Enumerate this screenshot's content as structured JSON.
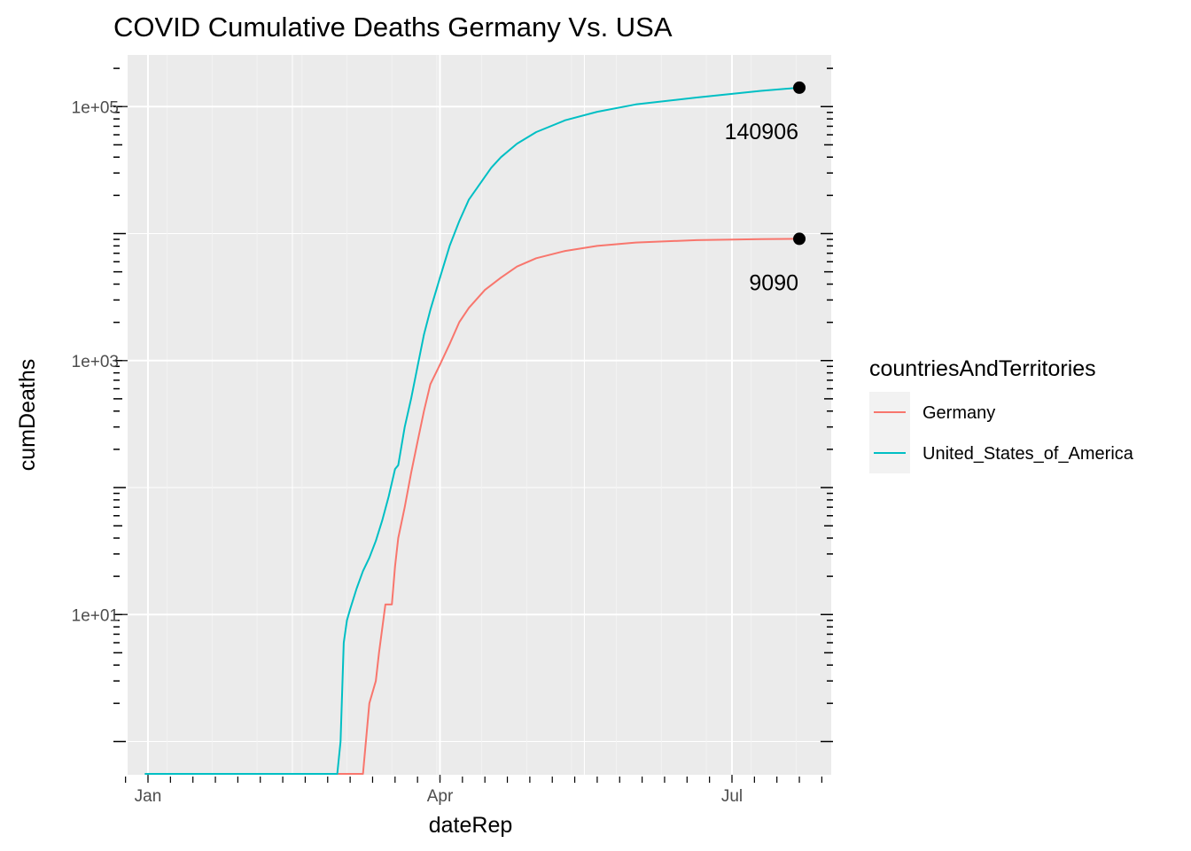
{
  "chart_data": {
    "type": "line",
    "title": "COVID Cumulative Deaths Germany Vs. USA",
    "xlabel": "dateRep",
    "ylabel": "cumDeaths",
    "y_scale": "log10",
    "grid": true,
    "legend": {
      "title": "countriesAndTerritories",
      "placement": "right"
    },
    "x_tick_labels": [
      {
        "date": "2020-01-01",
        "label": "Jan"
      },
      {
        "date": "2020-04-01",
        "label": "Apr"
      },
      {
        "date": "2020-07-01",
        "label": "Jul"
      }
    ],
    "y_tick_labels": [
      {
        "value": 10,
        "label": "1e+01"
      },
      {
        "value": 1000,
        "label": "1e+03"
      },
      {
        "value": 100000,
        "label": "1e+05"
      }
    ],
    "series": [
      {
        "name": "Germany",
        "color": "#F8766D",
        "points": [
          [
            "2019-12-31",
            0
          ],
          [
            "2020-03-08",
            0
          ],
          [
            "2020-03-10",
            2
          ],
          [
            "2020-03-12",
            3
          ],
          [
            "2020-03-13",
            5
          ],
          [
            "2020-03-15",
            12
          ],
          [
            "2020-03-17",
            12
          ],
          [
            "2020-03-18",
            24
          ],
          [
            "2020-03-19",
            40
          ],
          [
            "2020-03-21",
            70
          ],
          [
            "2020-03-23",
            130
          ],
          [
            "2020-03-25",
            230
          ],
          [
            "2020-03-27",
            400
          ],
          [
            "2020-03-29",
            650
          ],
          [
            "2020-04-01",
            930
          ],
          [
            "2020-04-04",
            1350
          ],
          [
            "2020-04-07",
            2000
          ],
          [
            "2020-04-10",
            2600
          ],
          [
            "2020-04-15",
            3600
          ],
          [
            "2020-04-20",
            4500
          ],
          [
            "2020-04-25",
            5500
          ],
          [
            "2020-05-01",
            6400
          ],
          [
            "2020-05-10",
            7300
          ],
          [
            "2020-05-20",
            8000
          ],
          [
            "2020-06-01",
            8500
          ],
          [
            "2020-06-20",
            8880
          ],
          [
            "2020-07-10",
            9050
          ],
          [
            "2020-07-22",
            9090
          ]
        ]
      },
      {
        "name": "United_States_of_America",
        "color": "#00BFC4",
        "points": [
          [
            "2019-12-31",
            0
          ],
          [
            "2020-02-29",
            0
          ],
          [
            "2020-03-01",
            1
          ],
          [
            "2020-03-02",
            6
          ],
          [
            "2020-03-03",
            9
          ],
          [
            "2020-03-04",
            11
          ],
          [
            "2020-03-06",
            16
          ],
          [
            "2020-03-08",
            22
          ],
          [
            "2020-03-10",
            28
          ],
          [
            "2020-03-12",
            38
          ],
          [
            "2020-03-14",
            55
          ],
          [
            "2020-03-16",
            85
          ],
          [
            "2020-03-18",
            140
          ],
          [
            "2020-03-19",
            150
          ],
          [
            "2020-03-21",
            300
          ],
          [
            "2020-03-23",
            500
          ],
          [
            "2020-03-25",
            900
          ],
          [
            "2020-03-27",
            1600
          ],
          [
            "2020-03-29",
            2500
          ],
          [
            "2020-04-01",
            4500
          ],
          [
            "2020-04-04",
            8000
          ],
          [
            "2020-04-07",
            12500
          ],
          [
            "2020-04-10",
            18500
          ],
          [
            "2020-04-15",
            28000
          ],
          [
            "2020-04-17",
            33000
          ],
          [
            "2020-04-20",
            40000
          ],
          [
            "2020-04-25",
            51000
          ],
          [
            "2020-05-01",
            63000
          ],
          [
            "2020-05-10",
            78000
          ],
          [
            "2020-05-20",
            91000
          ],
          [
            "2020-06-01",
            104000
          ],
          [
            "2020-06-20",
            118000
          ],
          [
            "2020-07-10",
            133000
          ],
          [
            "2020-07-22",
            140906
          ]
        ]
      }
    ],
    "end_point_labels": [
      {
        "series": "United_States_of_America",
        "date": "2020-07-22",
        "value": 140906,
        "label": "140906"
      },
      {
        "series": "Germany",
        "date": "2020-07-22",
        "value": 9090,
        "label": "9090"
      }
    ]
  }
}
